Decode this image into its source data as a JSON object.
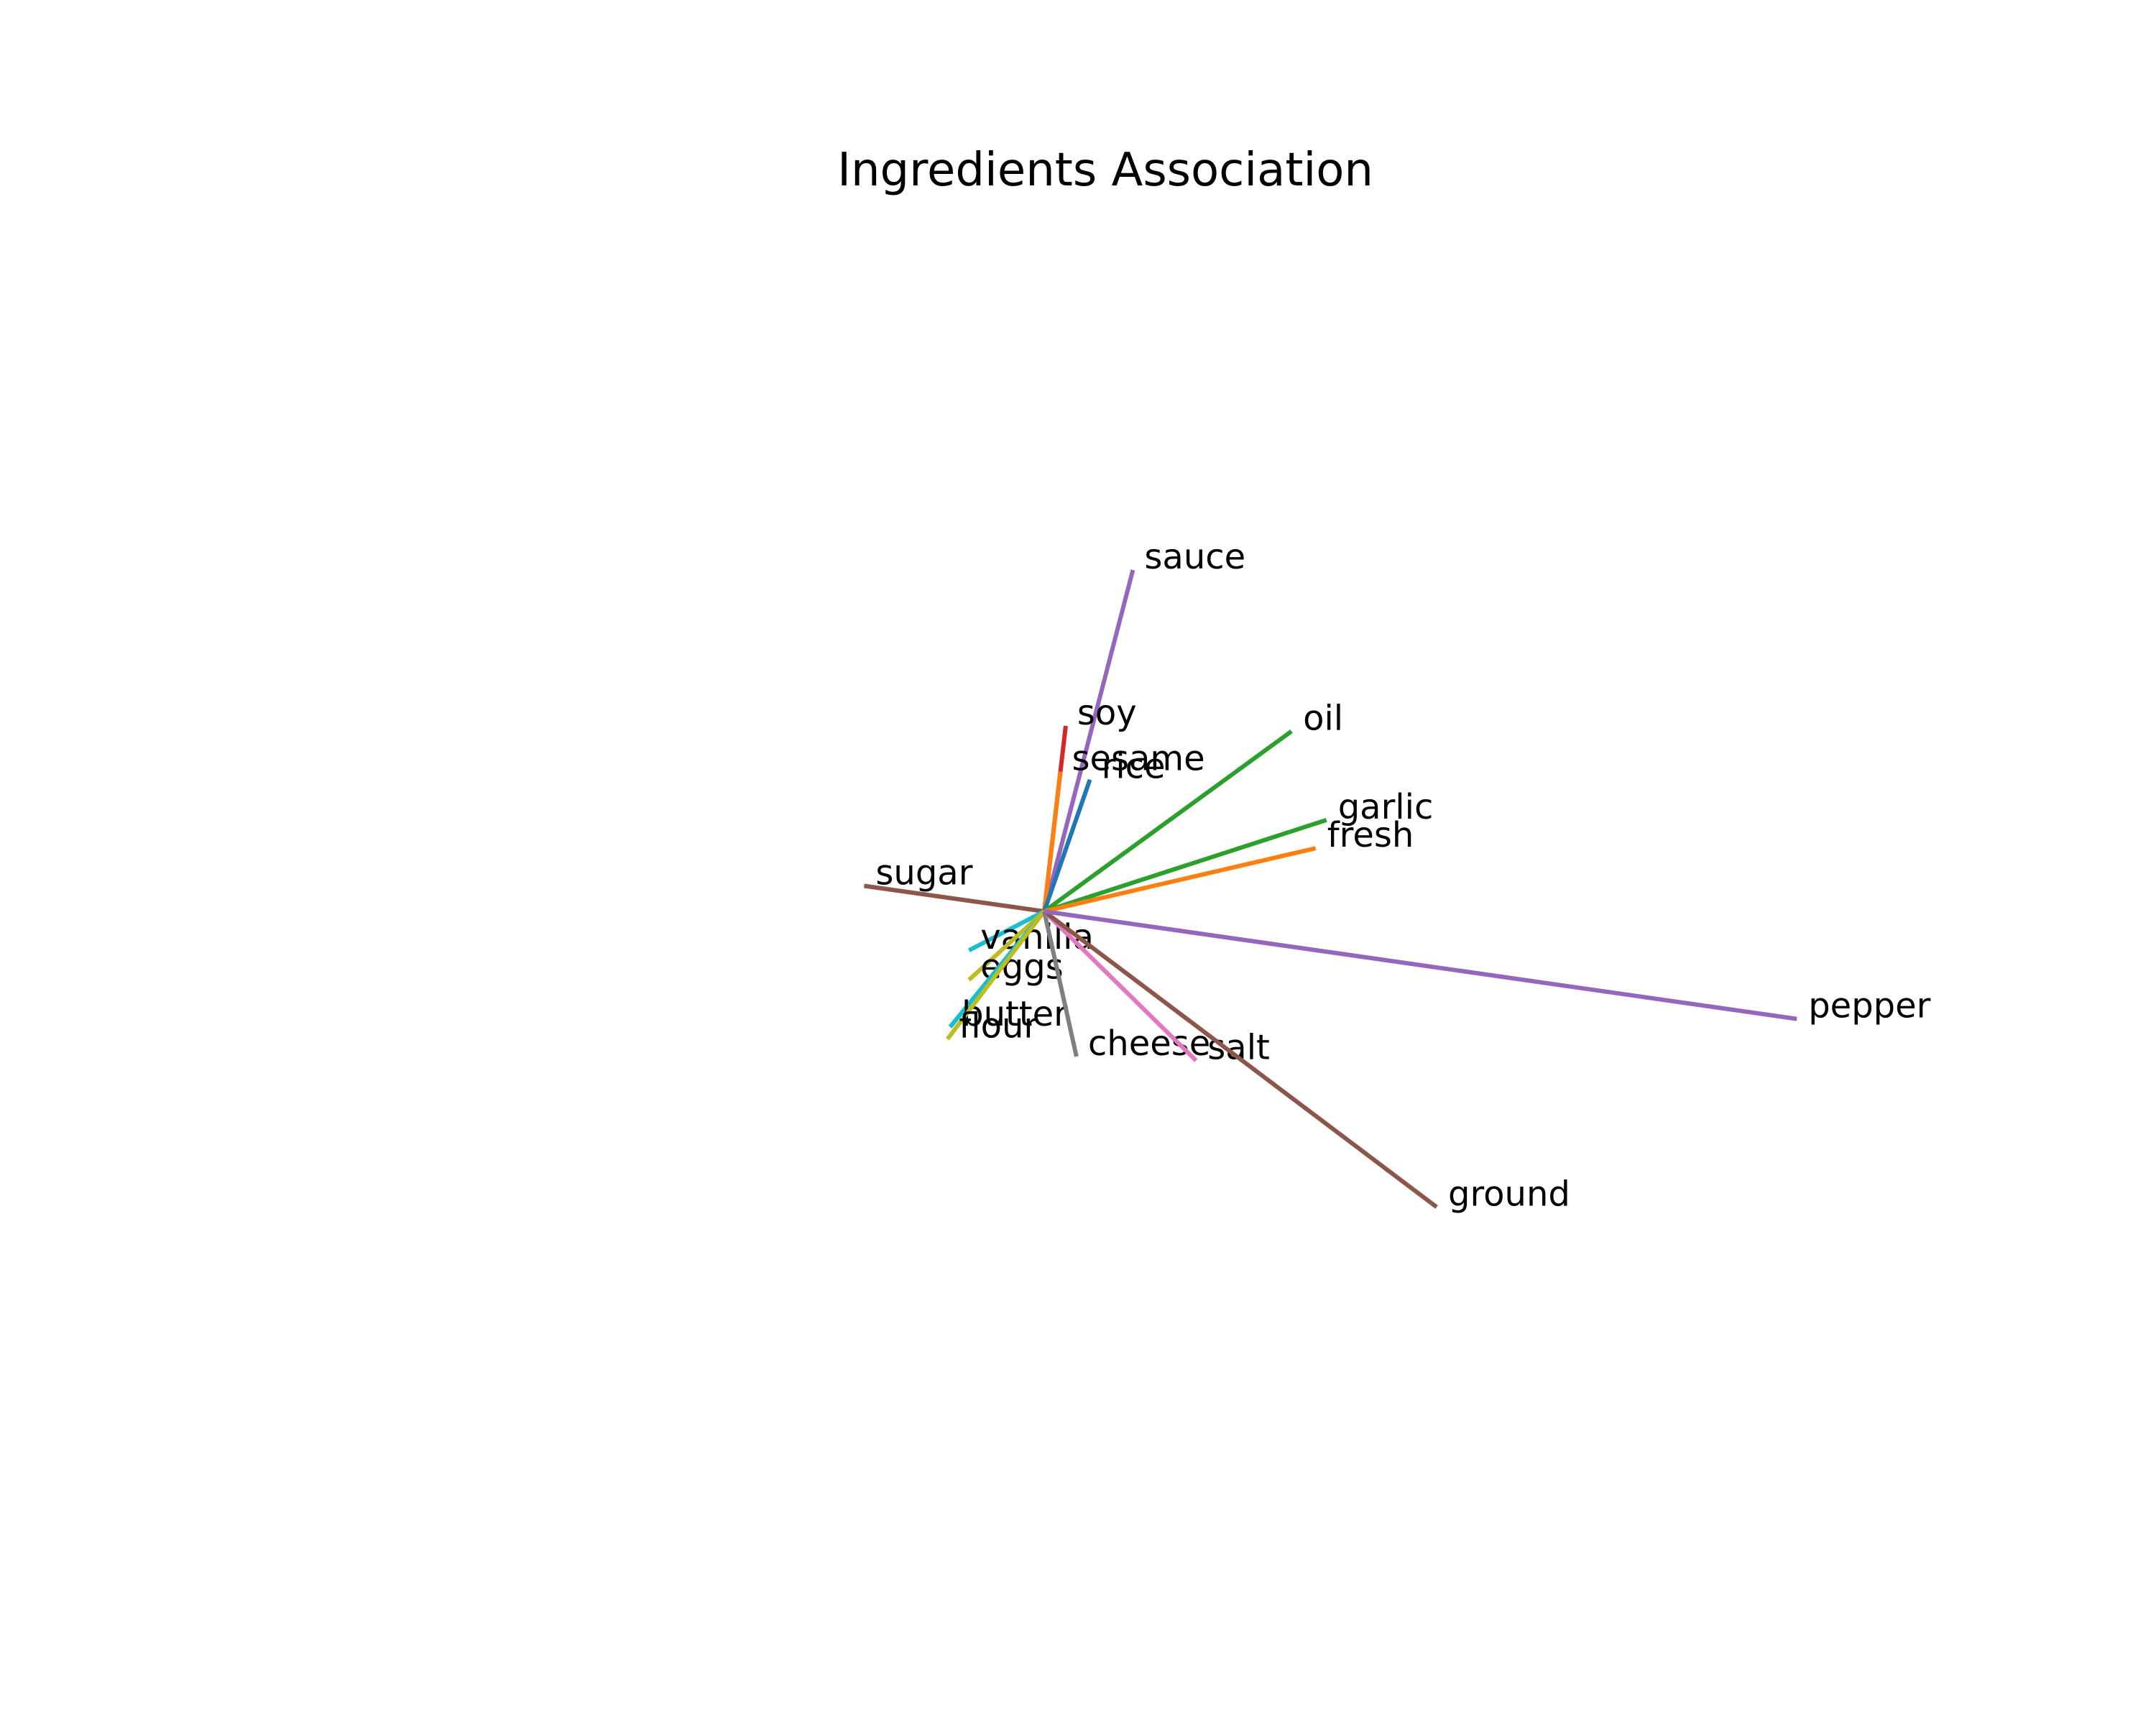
{
  "chart_data": {
    "type": "biplot",
    "title": "Ingredients Association",
    "xlabel": "",
    "ylabel": "",
    "axes_visible": false,
    "grid": false,
    "xlim": [
      -1.0,
      3.2
    ],
    "ylim": [
      -1.55,
      1.78
    ],
    "origin": [
      0,
      0
    ],
    "vectors": [
      {
        "label": "sauce",
        "x": 0.33,
        "y": 1.27,
        "color": "#9467bd"
      },
      {
        "label": "soy",
        "x": 0.08,
        "y": 0.69,
        "color": "#d62728"
      },
      {
        "label": "sesame",
        "x": 0.06,
        "y": 0.52,
        "color": "#ff7f0e"
      },
      {
        "label": "rice",
        "x": 0.17,
        "y": 0.49,
        "color": "#1f77b4"
      },
      {
        "label": "oil",
        "x": 0.92,
        "y": 0.67,
        "color": "#2ca02c"
      },
      {
        "label": "garlic",
        "x": 1.05,
        "y": 0.34,
        "color": "#2ca02c"
      },
      {
        "label": "fresh",
        "x": 1.01,
        "y": 0.235,
        "color": "#ff7f0e"
      },
      {
        "label": "sugar",
        "x": -0.67,
        "y": 0.095,
        "color": "#8c564b"
      },
      {
        "label": "vanilla",
        "x": -0.28,
        "y": -0.145,
        "color": "#17becf"
      },
      {
        "label": "eggs",
        "x": -0.28,
        "y": -0.255,
        "color": "#bcbd22"
      },
      {
        "label": "butter",
        "x": -0.35,
        "y": -0.43,
        "color": "#17becf"
      },
      {
        "label": "flour",
        "x": -0.36,
        "y": -0.475,
        "color": "#bcbd22"
      },
      {
        "label": "cheese",
        "x": 0.12,
        "y": -0.54,
        "color": "#7f7f7f"
      },
      {
        "label": "salt",
        "x": 0.565,
        "y": -0.555,
        "color": "#e377c2"
      },
      {
        "label": "ground",
        "x": 1.46,
        "y": -1.1,
        "color": "#8c564b"
      },
      {
        "label": "pepper",
        "x": 2.8,
        "y": -0.4,
        "color": "#9467bd"
      }
    ]
  }
}
